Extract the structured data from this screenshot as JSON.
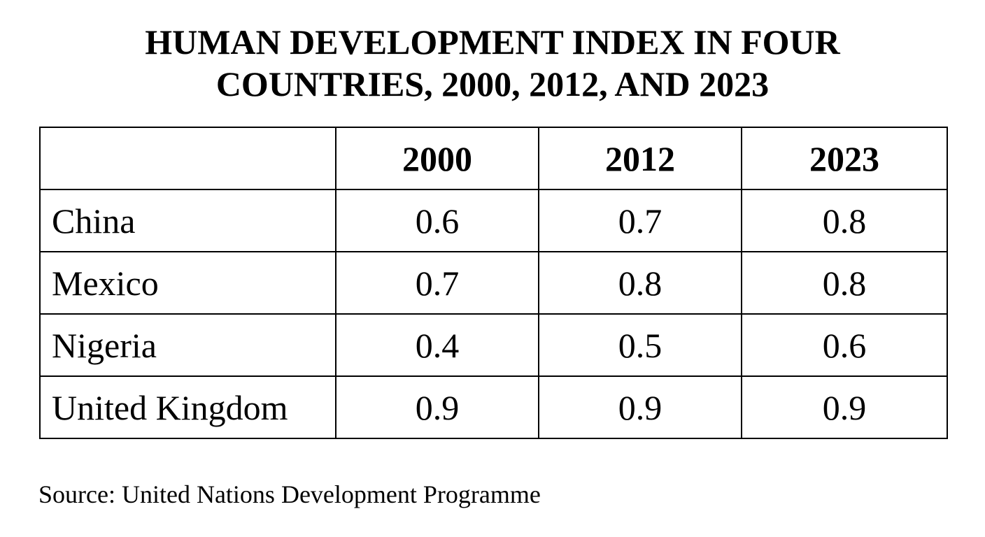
{
  "chart_data": {
    "type": "table",
    "title_lines": [
      "HUMAN DEVELOPMENT INDEX IN FOUR",
      "COUNTRIES, 2000, 2012, AND 2023"
    ],
    "columns": [
      "",
      "2000",
      "2012",
      "2023"
    ],
    "rows": [
      {
        "label": "China",
        "values": [
          "0.6",
          "0.7",
          "0.8"
        ]
      },
      {
        "label": "Mexico",
        "values": [
          "0.7",
          "0.8",
          "0.8"
        ]
      },
      {
        "label": "Nigeria",
        "values": [
          "0.4",
          "0.5",
          "0.6"
        ]
      },
      {
        "label": "United Kingdom",
        "values": [
          "0.9",
          "0.9",
          "0.9"
        ]
      }
    ],
    "source": "Source: United Nations Development Programme"
  }
}
